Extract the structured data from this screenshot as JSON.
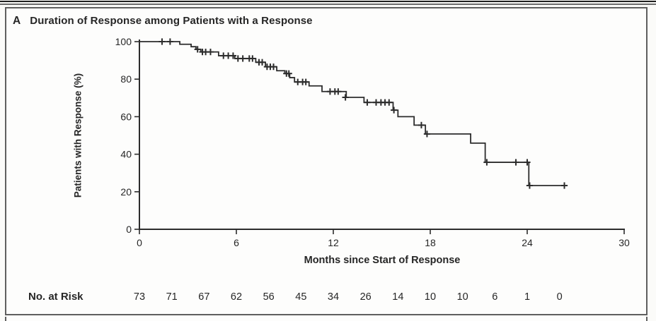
{
  "panel": {
    "label": "A",
    "title": "Duration of Response among Patients with a Response"
  },
  "chart_data": {
    "type": "line",
    "subtype": "kaplan-meier-step",
    "title": "Duration of Response among Patients with a Response",
    "xlabel": "Months since Start of Response",
    "ylabel": "Patients with Response (%)",
    "xlim": [
      0,
      30
    ],
    "ylim": [
      0,
      100
    ],
    "xticks": [
      0,
      6,
      12,
      18,
      24,
      30
    ],
    "yticks": [
      0,
      20,
      40,
      60,
      80,
      100
    ],
    "grid": false,
    "legend": "none",
    "line_color": "#2c2c2c",
    "steps": [
      [
        0,
        100
      ],
      [
        2.5,
        98.6
      ],
      [
        3.2,
        97.3
      ],
      [
        3.5,
        95.9
      ],
      [
        3.8,
        94.5
      ],
      [
        4.9,
        92.5
      ],
      [
        5.9,
        91.0
      ],
      [
        7.2,
        89.0
      ],
      [
        7.8,
        86.6
      ],
      [
        8.5,
        84.5
      ],
      [
        9.0,
        83.0
      ],
      [
        9.3,
        80.8
      ],
      [
        9.6,
        78.5
      ],
      [
        10.5,
        76.4
      ],
      [
        11.3,
        73.4
      ],
      [
        12.8,
        70.3
      ],
      [
        13.9,
        67.6
      ],
      [
        15.7,
        63.5
      ],
      [
        16.0,
        60.0
      ],
      [
        17.0,
        55.5
      ],
      [
        17.7,
        50.8
      ],
      [
        20.5,
        45.9
      ],
      [
        21.4,
        35.7
      ],
      [
        24.1,
        23.3
      ]
    ],
    "curve_end_month": 26.3,
    "censor_marks": [
      [
        1.4,
        100
      ],
      [
        1.9,
        100
      ],
      [
        3.6,
        95.9
      ],
      [
        3.9,
        94.5
      ],
      [
        4.1,
        94.5
      ],
      [
        4.4,
        94.5
      ],
      [
        5.2,
        92.5
      ],
      [
        5.5,
        92.5
      ],
      [
        5.8,
        92.5
      ],
      [
        6.1,
        91.0
      ],
      [
        6.4,
        91.0
      ],
      [
        6.8,
        91.0
      ],
      [
        7.0,
        91.0
      ],
      [
        7.4,
        89.0
      ],
      [
        7.6,
        89.0
      ],
      [
        7.9,
        86.6
      ],
      [
        8.1,
        86.6
      ],
      [
        8.3,
        86.6
      ],
      [
        9.1,
        83.0
      ],
      [
        9.25,
        83.0
      ],
      [
        9.8,
        78.5
      ],
      [
        10.1,
        78.5
      ],
      [
        10.3,
        78.5
      ],
      [
        11.8,
        73.4
      ],
      [
        12.1,
        73.4
      ],
      [
        12.3,
        73.4
      ],
      [
        12.75,
        70.3
      ],
      [
        14.1,
        67.6
      ],
      [
        14.65,
        67.6
      ],
      [
        14.95,
        67.6
      ],
      [
        15.2,
        67.6
      ],
      [
        15.45,
        67.6
      ],
      [
        15.75,
        63.5
      ],
      [
        17.45,
        55.5
      ],
      [
        17.8,
        50.8
      ],
      [
        21.5,
        35.7
      ],
      [
        23.3,
        35.7
      ],
      [
        24.0,
        35.7
      ],
      [
        24.15,
        23.3
      ],
      [
        26.3,
        23.3
      ]
    ]
  },
  "risk_table": {
    "label": "No. at Risk",
    "months": [
      0,
      2,
      4,
      6,
      8,
      10,
      12,
      14,
      16,
      18,
      20,
      22,
      24,
      26
    ],
    "values": [
      73,
      71,
      67,
      62,
      56,
      45,
      34,
      26,
      14,
      10,
      10,
      6,
      1,
      0
    ]
  }
}
